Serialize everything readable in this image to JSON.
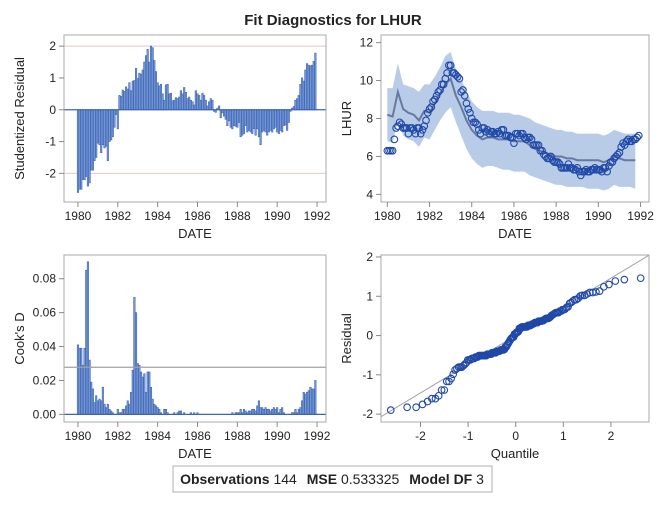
{
  "title": "Fit Diagnostics for LHUR",
  "footer": {
    "obs_label": "Observations",
    "obs_value": "144",
    "mse_label": "MSE",
    "mse_value": "0.533325",
    "df_label": "Model DF",
    "df_value": "3"
  },
  "colors": {
    "bar": "#3c64b4",
    "bar_fill": "#7f9fd9",
    "marker": "#1f48a8",
    "band": "#b8cce8",
    "pred": "#6878a0",
    "ref": "#e8c8c0",
    "qqline": "#a0a0a0"
  },
  "chart_data": [
    {
      "type": "bar",
      "panel": "residual-by-date",
      "xlabel": "DATE",
      "ylabel": "Studentized Residual",
      "xlim": [
        1979.3,
        1992.45
      ],
      "ylim": [
        -2.9,
        2.35
      ],
      "xticks": [
        "1980",
        "1982",
        "1984",
        "1986",
        "1988",
        "1990",
        "1992"
      ],
      "yticks": [
        "-2",
        "-1",
        "0",
        "1",
        "2"
      ],
      "reference_lines": [
        -2,
        2
      ],
      "start": 1980,
      "frequency": "monthly",
      "values": [
        -2.6,
        -2.5,
        -2.5,
        -2.2,
        -2.2,
        -2.1,
        -2.4,
        -2.3,
        -1.9,
        -1.9,
        -1.6,
        -1.5,
        -1.05,
        -1.1,
        -1.35,
        -1.1,
        -1.2,
        -1.15,
        -1.6,
        -1.0,
        -0.95,
        -0.85,
        -0.55,
        -0.15,
        -0.6,
        0.45,
        0.42,
        0.62,
        0.58,
        0.72,
        0.65,
        0.85,
        0.6,
        0.9,
        0.92,
        1.3,
        0.98,
        1.15,
        1.12,
        1.25,
        1.5,
        1.7,
        1.9,
        1.5,
        2.0,
        1.95,
        1.55,
        1.2,
        0.85,
        0.75,
        0.8,
        0.5,
        0.3,
        0.78,
        0.8,
        0.5,
        0.52,
        0.28,
        0.3,
        0.38,
        0.35,
        0.4,
        0.6,
        0.5,
        0.7,
        0.55,
        0.35,
        0.4,
        0.3,
        0.25,
        0.15,
        0.6,
        0.5,
        0.45,
        0.3,
        0.52,
        0.45,
        0.3,
        0.12,
        0.25,
        0.35,
        0.3,
        -0.05,
        -0.08,
        0.05,
        0.12,
        -0.25,
        -0.1,
        -0.2,
        -0.3,
        -0.5,
        -0.35,
        -0.55,
        -0.6,
        -0.5,
        -0.52,
        -0.55,
        -0.4,
        -0.85,
        -0.8,
        -0.75,
        -0.5,
        -0.7,
        -0.65,
        -0.7,
        -0.75,
        -0.6,
        -0.8,
        -0.6,
        -0.85,
        -1.1,
        -0.7,
        -0.65,
        -0.7,
        -0.8,
        -0.7,
        -0.65,
        -0.7,
        -0.6,
        -0.55,
        -0.7,
        -0.75,
        -0.65,
        -0.7,
        -0.5,
        -0.48,
        -0.65,
        -0.4,
        -0.05,
        0.05,
        0.1,
        0.3,
        0.35,
        0.45,
        0.8,
        1.0,
        0.9,
        1.25,
        1.45,
        1.4,
        1.38,
        1.4,
        1.52,
        1.78
      ]
    },
    {
      "type": "scatter",
      "panel": "observed-and-predicted-by-date",
      "xlabel": "DATE",
      "ylabel": "LHUR",
      "xlim": [
        1979.7,
        1992.4
      ],
      "ylim": [
        3.6,
        12.4
      ],
      "xticks": [
        "1980",
        "1982",
        "1984",
        "1986",
        "1988",
        "1990",
        "1992"
      ],
      "yticks": [
        "4",
        "6",
        "8",
        "10",
        "12"
      ],
      "start": 1980,
      "observed_monthly": [
        6.3,
        6.3,
        6.3,
        6.3,
        6.9,
        7.5,
        7.6,
        7.8,
        7.7,
        7.5,
        7.5,
        7.5,
        7.2,
        7.5,
        7.5,
        7.4,
        7.2,
        7.5,
        7.5,
        7.2,
        7.4,
        7.6,
        7.9,
        8.3,
        8.5,
        8.6,
        8.9,
        9.0,
        9.2,
        9.4,
        9.5,
        9.8,
        9.8,
        10.1,
        10.4,
        10.8,
        10.8,
        10.4,
        10.4,
        10.3,
        10.2,
        10.1,
        9.4,
        9.5,
        9.2,
        8.8,
        8.5,
        8.3,
        8.0,
        7.8,
        7.8,
        7.7,
        7.4,
        7.2,
        7.5,
        7.5,
        7.3,
        7.4,
        7.2,
        7.3,
        7.3,
        7.2,
        7.2,
        7.3,
        7.2,
        7.4,
        7.4,
        7.1,
        7.1,
        7.1,
        7.0,
        7.0,
        6.7,
        7.2,
        7.2,
        7.1,
        7.2,
        7.2,
        7.0,
        6.9,
        7.0,
        7.0,
        6.9,
        6.6,
        6.6,
        6.6,
        6.6,
        6.3,
        6.3,
        6.1,
        6.0,
        5.9,
        5.9,
        6.0,
        5.8,
        5.7,
        5.7,
        5.7,
        5.6,
        5.4,
        5.4,
        5.4,
        5.4,
        5.6,
        5.4,
        5.4,
        5.3,
        5.3,
        5.4,
        5.2,
        5.0,
        5.2,
        5.2,
        5.3,
        5.2,
        5.2,
        5.3,
        5.3,
        5.4,
        5.3,
        5.3,
        5.3,
        5.2,
        5.4,
        5.4,
        5.2,
        5.5,
        5.7,
        5.7,
        5.9,
        6.0,
        6.1,
        6.2,
        6.5,
        6.7,
        6.6,
        6.8,
        6.9,
        6.8,
        6.8,
        6.9,
        6.9,
        7.0,
        7.1
      ],
      "predicted_quarterly": [
        8.2,
        8.1,
        9.4,
        8.5,
        8.3,
        8.2,
        7.9,
        8.4,
        8.3,
        8.8,
        9.3,
        9.8,
        10.1,
        9.2,
        8.6,
        7.9,
        7.4,
        7.1,
        6.9,
        7.0,
        7.0,
        6.9,
        6.9,
        6.9,
        6.8,
        6.8,
        6.8,
        6.6,
        6.4,
        6.3,
        6.2,
        6.1,
        6.0,
        6.0,
        5.9,
        5.9,
        5.8,
        5.8,
        5.8,
        5.8,
        5.8,
        5.7,
        5.8,
        6.0,
        5.9,
        5.8,
        5.8,
        5.8
      ],
      "upper_quarterly": [
        9.6,
        9.6,
        10.9,
        9.8,
        9.7,
        9.6,
        9.4,
        9.8,
        9.8,
        10.2,
        10.7,
        11.3,
        11.5,
        10.6,
        10.1,
        9.4,
        8.9,
        8.6,
        8.4,
        8.4,
        8.4,
        8.3,
        8.3,
        8.3,
        8.2,
        8.2,
        8.1,
        8.0,
        7.8,
        7.7,
        7.6,
        7.5,
        7.4,
        7.4,
        7.3,
        7.3,
        7.2,
        7.2,
        7.2,
        7.2,
        7.2,
        7.1,
        7.2,
        7.4,
        7.3,
        7.2,
        7.2,
        7.2
      ],
      "lower_quarterly": [
        6.8,
        6.7,
        7.9,
        7.1,
        6.9,
        6.8,
        6.5,
        7.0,
        6.9,
        7.4,
        7.9,
        8.3,
        8.6,
        7.8,
        7.1,
        6.4,
        5.9,
        5.6,
        5.4,
        5.5,
        5.5,
        5.4,
        5.3,
        5.3,
        5.2,
        5.2,
        5.2,
        5.0,
        4.9,
        4.8,
        4.7,
        4.6,
        4.5,
        4.5,
        4.4,
        4.4,
        4.4,
        4.4,
        4.3,
        4.3,
        4.3,
        4.2,
        4.3,
        4.5,
        4.4,
        4.4,
        4.4,
        4.3
      ]
    },
    {
      "type": "bar",
      "panel": "cooks-d-by-date",
      "xlabel": "DATE",
      "ylabel": "Cook's D",
      "xlim": [
        1979.3,
        1992.45
      ],
      "ylim": [
        -0.0045,
        0.094
      ],
      "xticks": [
        "1980",
        "1982",
        "1984",
        "1986",
        "1988",
        "1990",
        "1992"
      ],
      "yticks": [
        "0.00",
        "0.02",
        "0.04",
        "0.06",
        "0.08"
      ],
      "reference_line": 0.0278,
      "start": 1980,
      "values": [
        0.041,
        0.039,
        0.039,
        0.029,
        0.039,
        0.085,
        0.09,
        0.032,
        0.019,
        0.015,
        0.007,
        0.011,
        0.008,
        0.009,
        0.008,
        0.016,
        0.006,
        0.004,
        0.006,
        0.003,
        0.002,
        0.001,
        0.0,
        0.0,
        0.003,
        0.001,
        0.001,
        0.003,
        0.003,
        0.005,
        0.008,
        0.006,
        0.013,
        0.026,
        0.069,
        0.06,
        0.03,
        0.029,
        0.025,
        0.022,
        0.024,
        0.013,
        0.025,
        0.025,
        0.016,
        0.009,
        0.006,
        0.005,
        0.004,
        0.003,
        0.001,
        0.0,
        0.003,
        0.003,
        0.001,
        0.0,
        0.0,
        0.0,
        0.001,
        0.0,
        0.001,
        0.002,
        0.002,
        0.0,
        0.001,
        0.0,
        0.0,
        0.0,
        0.001,
        0.0,
        0.001,
        0.0,
        0.001,
        0.0,
        0.0,
        0.0,
        0.0,
        0.0,
        0.0,
        0.0,
        0.0,
        0.0,
        0.0,
        0.0,
        0.0,
        0.0,
        0.0,
        0.0,
        0.0,
        0.0,
        0.0,
        0.0,
        0.0,
        0.001,
        0.0,
        0.001,
        0.001,
        0.001,
        0.003,
        0.001,
        0.003,
        0.002,
        0.001,
        0.002,
        0.002,
        0.003,
        0.003,
        0.002,
        0.005,
        0.008,
        0.004,
        0.004,
        0.003,
        0.004,
        0.003,
        0.003,
        0.002,
        0.003,
        0.004,
        0.003,
        0.004,
        0.001,
        0.003,
        0.004,
        0.001,
        0.0,
        0.0,
        0.0,
        0.0,
        0.001,
        0.001,
        0.003,
        0.001,
        0.003,
        0.004,
        0.008,
        0.013,
        0.012,
        0.013,
        0.014,
        0.016,
        0.015,
        0.015,
        0.02
      ]
    },
    {
      "type": "scatter",
      "panel": "residual-normal-quantile",
      "xlabel": "Quantile",
      "ylabel": "Residual",
      "xlim": [
        -2.83,
        2.8
      ],
      "ylim": [
        -2.2,
        2.05
      ],
      "xticks": [
        "-2",
        "-1",
        "0",
        "1",
        "2"
      ],
      "yticks": [
        "-2",
        "-1",
        "0",
        "1",
        "2"
      ],
      "reference_line": {
        "intercept": 0,
        "slope": 0.73
      },
      "residual_scale": 0.73
    }
  ]
}
